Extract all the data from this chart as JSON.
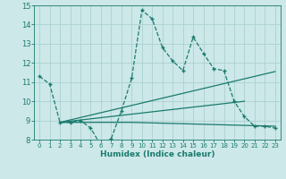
{
  "xlabel": "Humidex (Indice chaleur)",
  "bg_color": "#cce8e8",
  "line_color": "#1a7a6e",
  "grid_color": "#a8cccc",
  "xlim": [
    -0.5,
    23.5
  ],
  "ylim": [
    8,
    15
  ],
  "xticks": [
    0,
    1,
    2,
    3,
    4,
    5,
    6,
    7,
    8,
    9,
    10,
    11,
    12,
    13,
    14,
    15,
    16,
    17,
    18,
    19,
    20,
    21,
    22,
    23
  ],
  "yticks": [
    8,
    9,
    10,
    11,
    12,
    13,
    14,
    15
  ],
  "series1_x": [
    0,
    1,
    2,
    3,
    4,
    5,
    6,
    7,
    8,
    9,
    10,
    11,
    12,
    13,
    14,
    15,
    16,
    17,
    18,
    19,
    20,
    21,
    22,
    23
  ],
  "series1_y": [
    11.3,
    10.9,
    8.9,
    8.9,
    9.0,
    8.6,
    7.7,
    8.05,
    9.5,
    11.2,
    14.75,
    14.3,
    12.8,
    12.1,
    11.6,
    13.35,
    12.5,
    11.7,
    11.6,
    10.0,
    9.2,
    8.7,
    8.7,
    8.6
  ],
  "line2_x": [
    2,
    23
  ],
  "line2_y": [
    8.9,
    11.55
  ],
  "line3_x": [
    2,
    20
  ],
  "line3_y": [
    8.9,
    10.0
  ],
  "line4_x": [
    2,
    9,
    23
  ],
  "line4_y": [
    8.9,
    8.9,
    8.7
  ]
}
